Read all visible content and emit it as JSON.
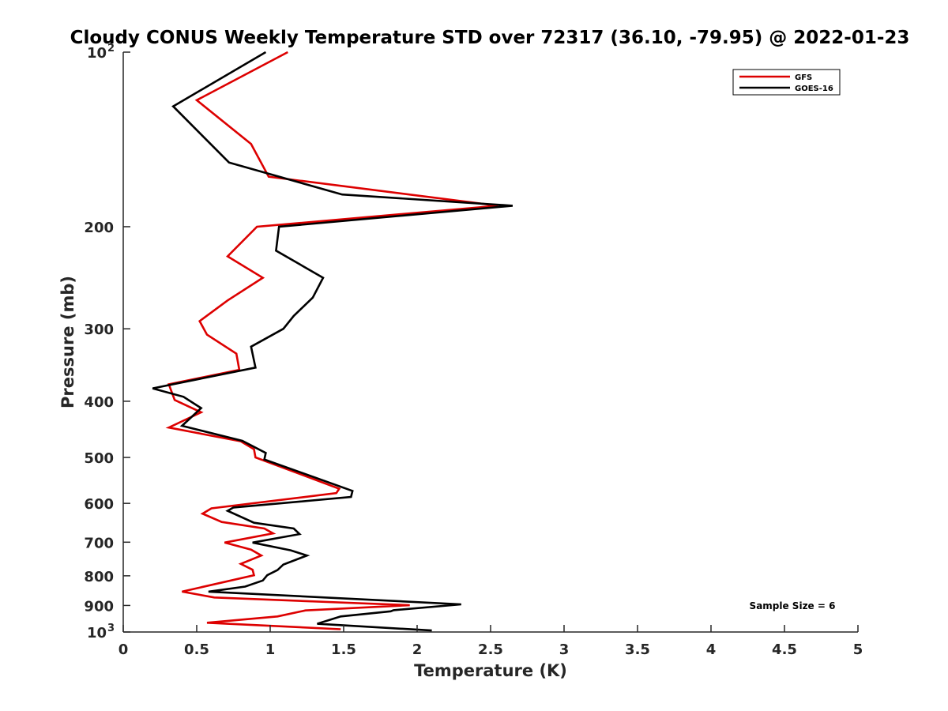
{
  "chart_data": {
    "type": "line",
    "title": "Cloudy CONUS Weekly Temperature STD over 72317 (36.10, -79.95) @ 2022-01-23",
    "xlabel": "Temperature (K)",
    "ylabel": "Pressure (mb)",
    "xlim": [
      0,
      5
    ],
    "ylim": [
      100,
      1000
    ],
    "y_scale": "log",
    "y_reversed": true,
    "x_ticks": [
      {
        "value": 0,
        "label": "0"
      },
      {
        "value": 0.5,
        "label": "0.5"
      },
      {
        "value": 1,
        "label": "1"
      },
      {
        "value": 1.5,
        "label": "1.5"
      },
      {
        "value": 2,
        "label": "2"
      },
      {
        "value": 2.5,
        "label": "2.5"
      },
      {
        "value": 3,
        "label": "3"
      },
      {
        "value": 3.5,
        "label": "3.5"
      },
      {
        "value": 4,
        "label": "4"
      },
      {
        "value": 4.5,
        "label": "4.5"
      },
      {
        "value": 5,
        "label": "5"
      }
    ],
    "y_ticks": [
      {
        "value": 100,
        "label": "10",
        "sup": "2"
      },
      {
        "value": 200,
        "label": "200"
      },
      {
        "value": 300,
        "label": "300"
      },
      {
        "value": 400,
        "label": "400"
      },
      {
        "value": 500,
        "label": "500"
      },
      {
        "value": 600,
        "label": "600"
      },
      {
        "value": 700,
        "label": "700"
      },
      {
        "value": 800,
        "label": "800"
      },
      {
        "value": 900,
        "label": "900"
      },
      {
        "value": 1000,
        "label": "10",
        "sup": "3"
      }
    ],
    "grid": false,
    "legend_position": "top-right",
    "annotation": "Sample Size = 6",
    "series": [
      {
        "name": "GFS",
        "color": "#dd0000",
        "points": [
          [
            1.12,
            100
          ],
          [
            0.5,
            121
          ],
          [
            0.87,
            144
          ],
          [
            0.99,
            164
          ],
          [
            2.55,
            184
          ],
          [
            0.91,
            200
          ],
          [
            0.71,
            225
          ],
          [
            0.95,
            245
          ],
          [
            0.71,
            268
          ],
          [
            0.52,
            291
          ],
          [
            0.57,
            307
          ],
          [
            0.77,
            331
          ],
          [
            0.79,
            353
          ],
          [
            0.31,
            374
          ],
          [
            0.35,
            398
          ],
          [
            0.53,
            418
          ],
          [
            0.31,
            444
          ],
          [
            0.8,
            469
          ],
          [
            0.89,
            484
          ],
          [
            0.9,
            500
          ],
          [
            1.47,
            566
          ],
          [
            1.45,
            576
          ],
          [
            0.6,
            612
          ],
          [
            0.54,
            625
          ],
          [
            0.67,
            646
          ],
          [
            0.96,
            663
          ],
          [
            1.02,
            676
          ],
          [
            0.69,
            701
          ],
          [
            0.87,
            721
          ],
          [
            0.94,
            738
          ],
          [
            0.8,
            763
          ],
          [
            0.88,
            781
          ],
          [
            0.89,
            798
          ],
          [
            0.4,
            852
          ],
          [
            0.62,
            872
          ],
          [
            1.95,
            899
          ],
          [
            1.24,
            918
          ],
          [
            1.05,
            940
          ],
          [
            0.57,
            964
          ],
          [
            1.48,
            989
          ]
        ]
      },
      {
        "name": "GOES-16",
        "color": "#000000",
        "points": [
          [
            0.97,
            100
          ],
          [
            0.34,
            124
          ],
          [
            0.72,
            155
          ],
          [
            1.49,
            176
          ],
          [
            2.65,
            184
          ],
          [
            1.06,
            200
          ],
          [
            1.04,
            220
          ],
          [
            1.36,
            245
          ],
          [
            1.29,
            265
          ],
          [
            1.16,
            285
          ],
          [
            1.09,
            300
          ],
          [
            0.87,
            322
          ],
          [
            0.9,
            350
          ],
          [
            0.2,
            380
          ],
          [
            0.41,
            393
          ],
          [
            0.53,
            411
          ],
          [
            0.4,
            441
          ],
          [
            0.81,
            468
          ],
          [
            0.97,
            491
          ],
          [
            0.96,
            504
          ],
          [
            1.56,
            571
          ],
          [
            1.55,
            585
          ],
          [
            0.75,
            610
          ],
          [
            0.71,
            618
          ],
          [
            0.89,
            648
          ],
          [
            1.16,
            663
          ],
          [
            1.2,
            678
          ],
          [
            0.88,
            701
          ],
          [
            1.14,
            723
          ],
          [
            1.25,
            738
          ],
          [
            1.09,
            765
          ],
          [
            1.05,
            782
          ],
          [
            0.98,
            798
          ],
          [
            0.95,
            815
          ],
          [
            0.83,
            835
          ],
          [
            0.58,
            852
          ],
          [
            2.3,
            896
          ],
          [
            1.84,
            917
          ],
          [
            1.82,
            921
          ],
          [
            1.48,
            940
          ],
          [
            1.32,
            968
          ],
          [
            2.1,
            994
          ]
        ]
      }
    ]
  }
}
